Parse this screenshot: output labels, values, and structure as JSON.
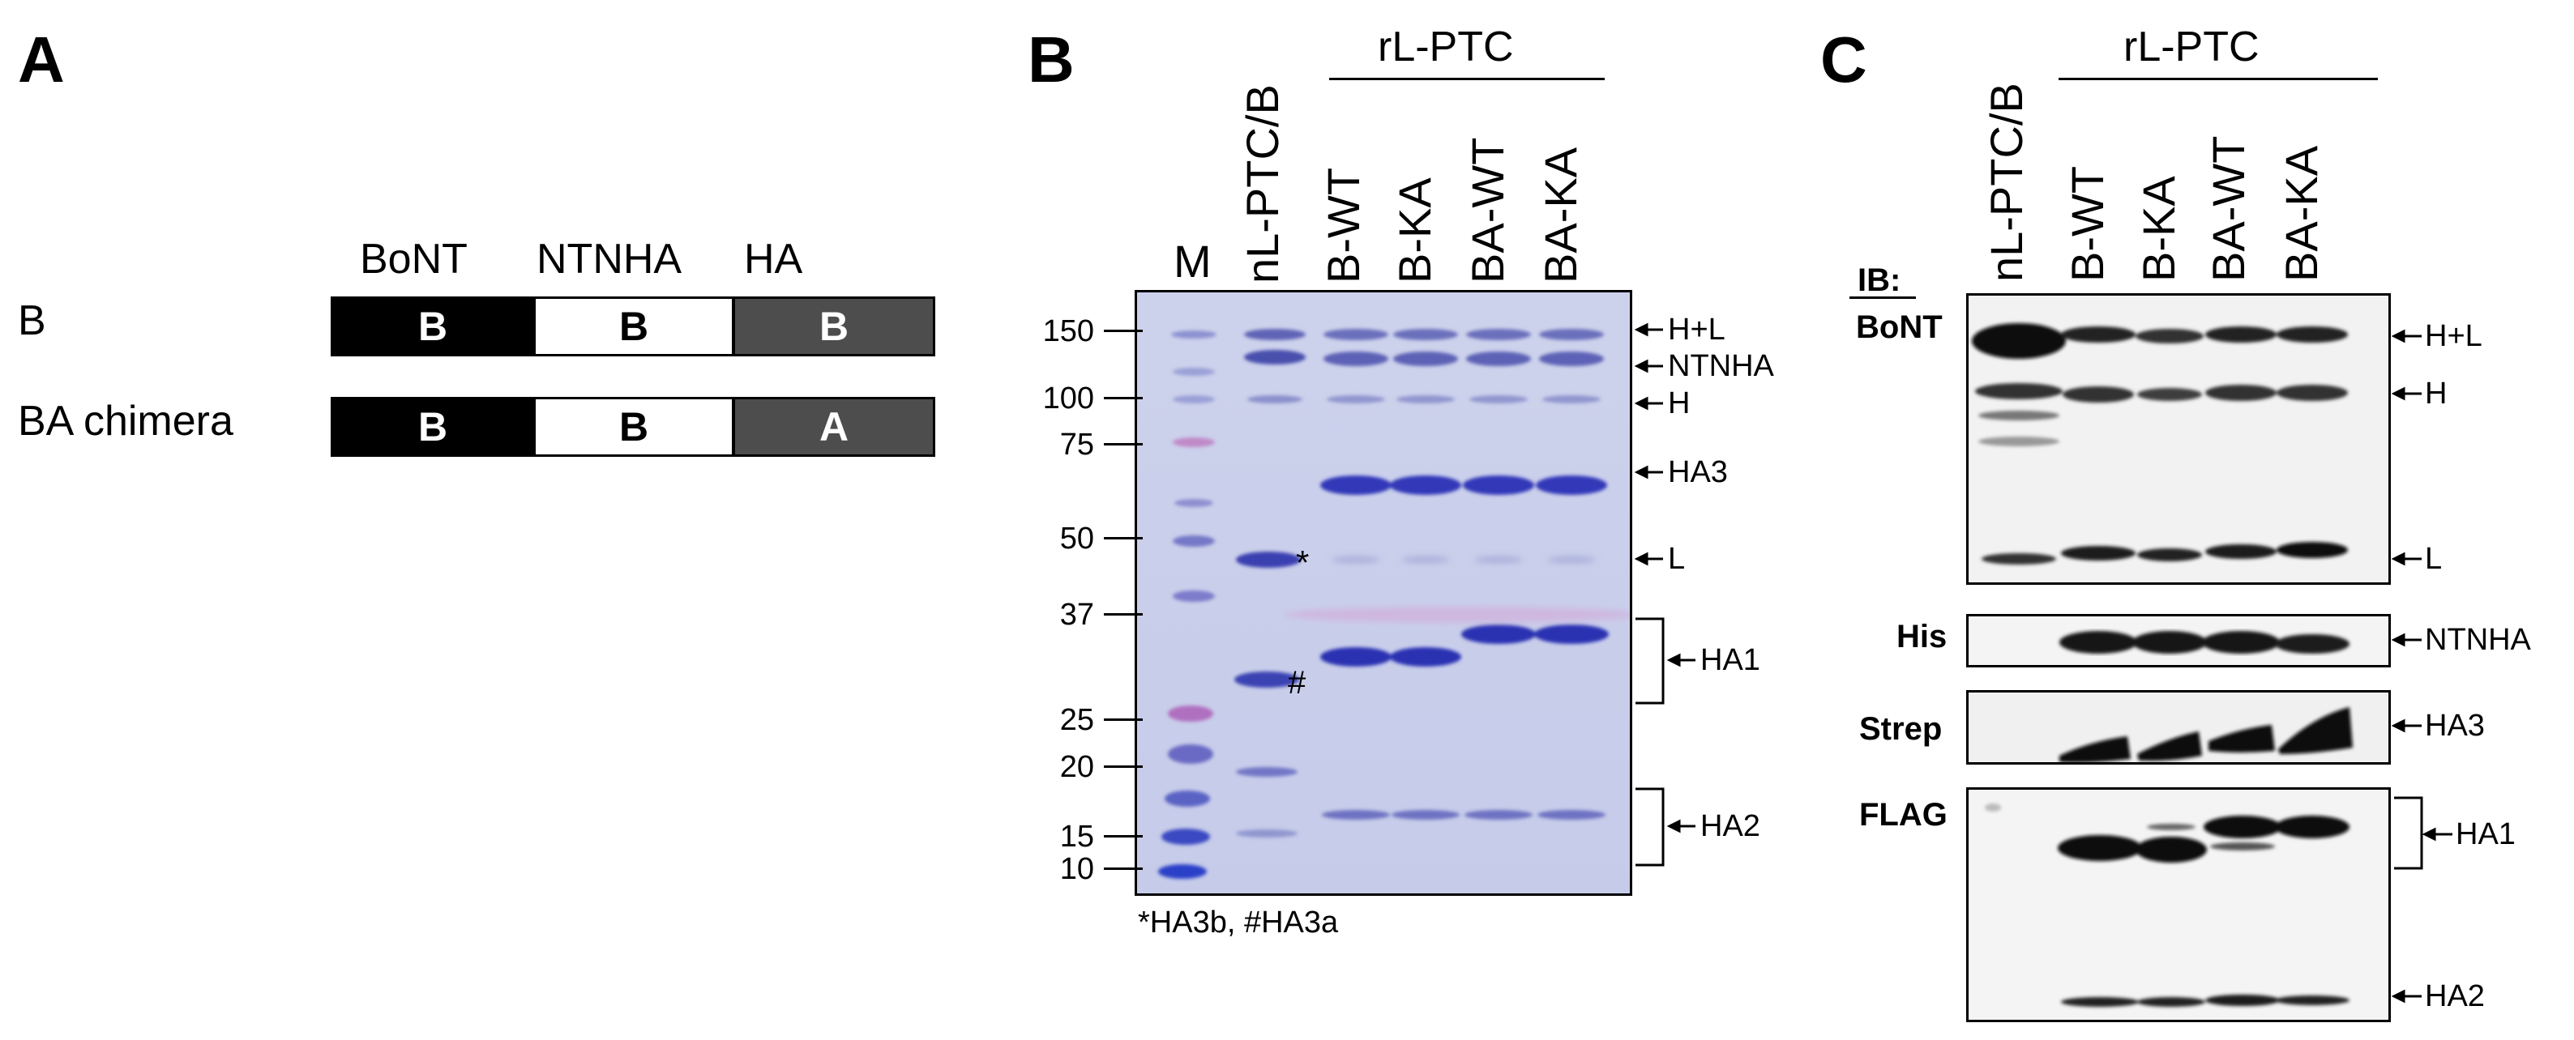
{
  "panels": {
    "a": "A",
    "b": "B",
    "c": "C"
  },
  "panel_a": {
    "column_headers": [
      "BoNT",
      "NTNHA",
      "HA"
    ],
    "rows": [
      {
        "label": "B",
        "segments": [
          "B",
          "B",
          "B"
        ]
      },
      {
        "label": "BA chimera",
        "segments": [
          "B",
          "B",
          "A"
        ]
      }
    ],
    "colors": {
      "bont": "#000000",
      "ntnha": "#ffffff",
      "ha": "#4d4d4d"
    }
  },
  "panel_b": {
    "group_label": "rL-PTC",
    "lanes": [
      "M",
      "nL-PTC/B",
      "B-WT",
      "B-KA",
      "BA-WT",
      "BA-KA"
    ],
    "mw_markers": [
      "150",
      "100",
      "75",
      "50",
      "37",
      "25",
      "20",
      "15",
      "10"
    ],
    "band_labels": [
      "H+L",
      "NTNHA",
      "H",
      "HA3",
      "L",
      "HA1",
      "HA2"
    ],
    "asterisk": "*",
    "hash": "#",
    "footnote": "*HA3b, #HA3a",
    "gel_color": "#c8cdeb"
  },
  "panel_c": {
    "group_label": "rL-PTC",
    "lanes": [
      "nL-PTC/B",
      "B-WT",
      "B-KA",
      "BA-WT",
      "BA-KA"
    ],
    "ib_label": "IB:",
    "blots": [
      {
        "antibody": "BoNT",
        "bands": [
          "H+L",
          "H",
          "L"
        ]
      },
      {
        "antibody": "His",
        "bands": [
          "NTNHA"
        ]
      },
      {
        "antibody": "Strep",
        "bands": [
          "HA3"
        ]
      },
      {
        "antibody": "FLAG",
        "bands": [
          "HA1",
          "HA2"
        ]
      }
    ]
  }
}
